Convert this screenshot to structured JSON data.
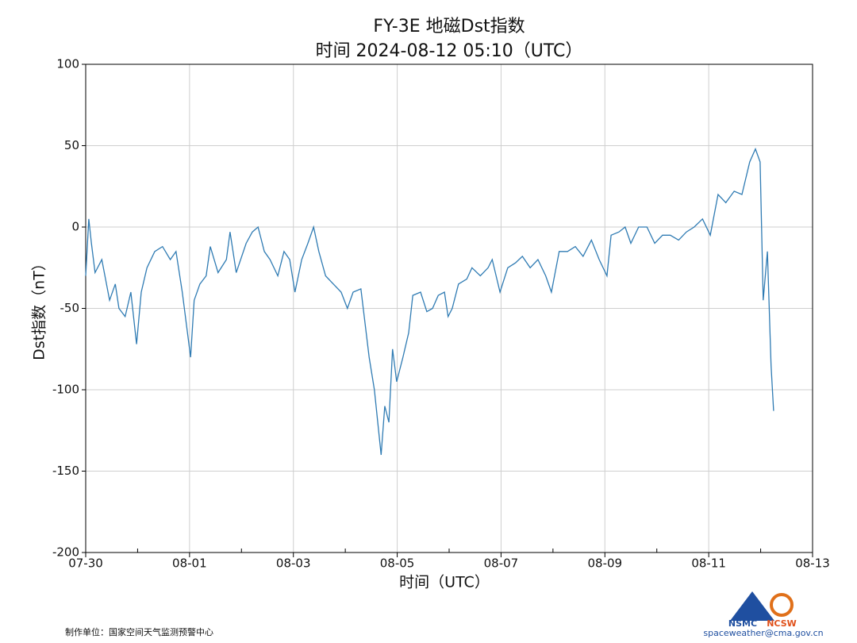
{
  "chart_data": {
    "type": "line",
    "title": "FY-3E 地磁Dst指数",
    "subtitle": "时间 2024-08-12 05:10（UTC）",
    "x_label": "时间（UTC）",
    "y_label": "Dst指数（nT）",
    "color": "#2f7bb3",
    "grid": true,
    "xlim": [
      0,
      14
    ],
    "xticks": [
      {
        "value": 0,
        "label": "07-30"
      },
      {
        "value": 2,
        "label": "08-01"
      },
      {
        "value": 4,
        "label": "08-03"
      },
      {
        "value": 6,
        "label": "08-05"
      },
      {
        "value": 8,
        "label": "08-07"
      },
      {
        "value": 10,
        "label": "08-09"
      },
      {
        "value": 12,
        "label": "08-11"
      },
      {
        "value": 14,
        "label": "08-13"
      }
    ],
    "xminor_ticks": [
      1,
      3,
      5,
      7,
      9,
      11,
      13
    ],
    "ylim": [
      -200,
      100
    ],
    "yticks": [
      -200,
      -150,
      -100,
      -50,
      0,
      50,
      100
    ],
    "x": [
      0,
      0.06,
      0.11,
      0.18,
      0.31,
      0.46,
      0.57,
      0.64,
      0.76,
      0.87,
      0.98,
      1.07,
      1.18,
      1.33,
      1.48,
      1.63,
      1.74,
      1.86,
      2.02,
      2.09,
      2.2,
      2.32,
      2.4,
      2.55,
      2.71,
      2.78,
      2.9,
      3.09,
      3.21,
      3.32,
      3.44,
      3.55,
      3.7,
      3.82,
      3.93,
      4.03,
      4.16,
      4.28,
      4.39,
      4.49,
      4.62,
      4.77,
      4.92,
      5.04,
      5.15,
      5.3,
      5.46,
      5.56,
      5.69,
      5.76,
      5.84,
      5.91,
      5.99,
      6.11,
      6.22,
      6.3,
      6.45,
      6.57,
      6.68,
      6.79,
      6.91,
      6.98,
      7.06,
      7.18,
      7.34,
      7.44,
      7.6,
      7.75,
      7.83,
      7.98,
      8.13,
      8.28,
      8.41,
      8.56,
      8.71,
      8.86,
      8.97,
      9.12,
      9.28,
      9.43,
      9.58,
      9.74,
      9.89,
      10.04,
      10.12,
      10.27,
      10.39,
      10.5,
      10.65,
      10.81,
      10.96,
      11.11,
      11.26,
      11.42,
      11.57,
      11.72,
      11.88,
      12.03,
      12.18,
      12.33,
      12.49,
      12.64,
      12.79,
      12.9,
      12.99,
      13.05,
      13.13,
      13.2,
      13.25
    ],
    "values": [
      -30,
      5,
      -10,
      -28,
      -20,
      -45,
      -35,
      -50,
      -55,
      -40,
      -72,
      -40,
      -25,
      -15,
      -12,
      -20,
      -15,
      -40,
      -80,
      -45,
      -35,
      -30,
      -12,
      -28,
      -20,
      -3,
      -28,
      -10,
      -3,
      0,
      -15,
      -20,
      -30,
      -15,
      -20,
      -40,
      -20,
      -10,
      0,
      -15,
      -30,
      -35,
      -40,
      -50,
      -40,
      -38,
      -80,
      -100,
      -140,
      -110,
      -120,
      -75,
      -95,
      -80,
      -65,
      -42,
      -40,
      -52,
      -50,
      -42,
      -40,
      -55,
      -50,
      -35,
      -32,
      -25,
      -30,
      -25,
      -20,
      -40,
      -25,
      -22,
      -18,
      -25,
      -20,
      -30,
      -40,
      -15,
      -15,
      -12,
      -18,
      -8,
      -20,
      -30,
      -5,
      -3,
      0,
      -10,
      0,
      0,
      -10,
      -5,
      -5,
      -8,
      -3,
      0,
      5,
      -5,
      20,
      15,
      22,
      20,
      40,
      48,
      40,
      -45,
      -15,
      -85,
      -113
    ]
  },
  "footer": {
    "producer": "制作单位：国家空间天气监测预警中心",
    "email": "spaceweather@cma.gov.cn",
    "logo_left": "NSMC",
    "logo_right": "NCSW"
  }
}
